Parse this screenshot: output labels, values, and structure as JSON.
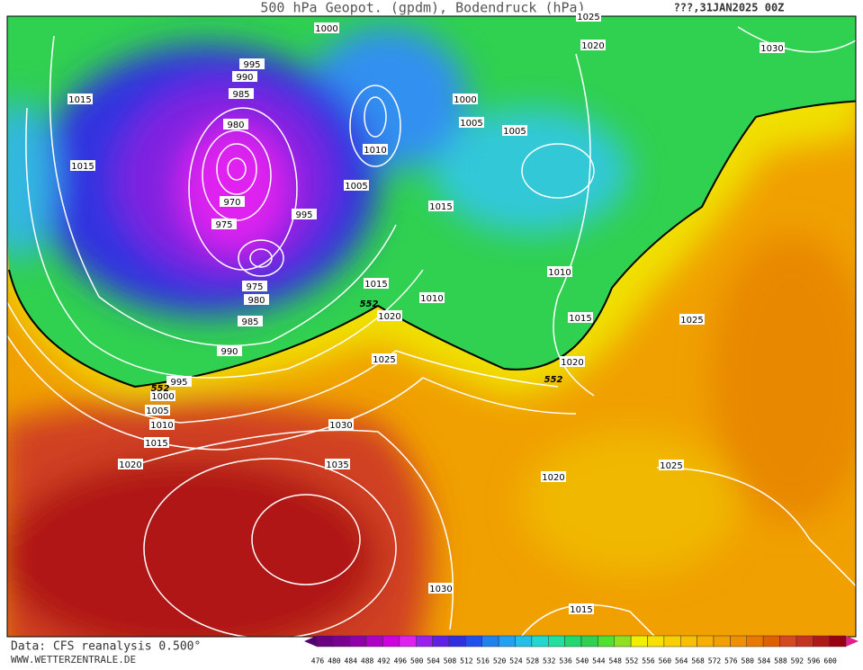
{
  "header": {
    "title": "500 hPa Geopot. (gpdm), Bodendruck (hPa)",
    "date": "???,31JAN2025 00Z"
  },
  "isobar_labels": [
    1000,
    995,
    990,
    985,
    980,
    970,
    975,
    975,
    980,
    985,
    990,
    995,
    1000,
    1005,
    1010,
    1015,
    1020,
    1015,
    1015,
    1000,
    1005,
    1005,
    1010,
    1005,
    995,
    1015,
    1015,
    1020,
    1010,
    1010,
    1015,
    1020,
    1025,
    1030,
    1035,
    1020,
    1025,
    1025,
    1030,
    1015,
    1020,
    1030,
    1025
  ],
  "contour_552_labels": [
    552,
    552,
    552
  ],
  "color_scale": [
    476,
    480,
    484,
    488,
    492,
    496,
    500,
    504,
    508,
    512,
    516,
    520,
    524,
    528,
    532,
    536,
    540,
    544,
    548,
    552,
    556,
    560,
    564,
    568,
    572,
    576,
    580,
    584,
    588,
    592,
    596,
    600
  ],
  "footer": {
    "source": "Data: CFS reanalysis 0.500°",
    "site": "WWW.WETTERZENTRALE.DE"
  }
}
